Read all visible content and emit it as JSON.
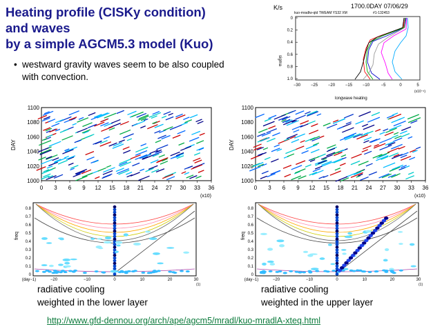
{
  "title": {
    "line1": "Heating profile (CISKy condition)",
    "line2": "and waves",
    "line3": "by a simple AGCM5.3 model (Kuo)"
  },
  "bullet": {
    "symbol": "•",
    "line1": "westward gravity waves seem to be also coupled",
    "line2": "with convection."
  },
  "inset": {
    "units": "K/s",
    "time_label": "1700.0DAY 07/06/29",
    "subtitle": "kuo-mradlw-qtd TWEAM YS32 XM",
    "run_id": "#1-132453",
    "ylabel": "sigma",
    "xlabel": "longwave heating",
    "x_exponent": "(x10⁻⁶)",
    "xticks": [
      "−30",
      "−25",
      "−20",
      "−15",
      "−10",
      "−5",
      "0",
      "5"
    ],
    "yticks": [
      "0",
      "0.2",
      "0.4",
      "0.6",
      "0.8",
      "1.0"
    ]
  },
  "left_hovmoller": {
    "ylabel": "DAY",
    "yticks": [
      "1100",
      "1080",
      "1060",
      "1040",
      "1020",
      "1000"
    ],
    "xticks": [
      "0",
      "3",
      "6",
      "9",
      "12",
      "15",
      "18",
      "21",
      "24",
      "27",
      "30",
      "33",
      "36"
    ],
    "x_exponent": "(x10)"
  },
  "right_hovmoller": {
    "ylabel": "DAY",
    "yticks": [
      "1100",
      "1080",
      "1060",
      "1040",
      "1020",
      "1000"
    ],
    "xticks": [
      "0",
      "3",
      "6",
      "9",
      "12",
      "15",
      "18",
      "21",
      "24",
      "27",
      "30",
      "33",
      "36"
    ],
    "x_exponent": "(x10)"
  },
  "left_spectrum": {
    "ylabel": "freq",
    "yticks": [
      "0.8",
      "0.7",
      "0.6",
      "0.5",
      "0.4",
      "0.3",
      "0.2",
      "0.1",
      "0"
    ],
    "xticks": [
      "(day−1)",
      "−20",
      "−10",
      "0",
      "10",
      "20",
      "30"
    ],
    "x_unit": "(1)"
  },
  "right_spectrum": {
    "ylabel": "freq",
    "yticks": [
      "0.8",
      "0.7",
      "0.6",
      "0.5",
      "0.4",
      "0.3",
      "0.2",
      "0.1",
      "0"
    ],
    "xticks": [
      "(day−1)",
      "−20",
      "−10",
      "0",
      "10",
      "20",
      "30"
    ],
    "x_unit": "(1)"
  },
  "captions": {
    "left_line1": "radiative cooling",
    "left_line2": "weighted in the lower layer",
    "right_line1": "radiative cooling",
    "right_line2": "weighted in the upper layer"
  },
  "link": {
    "text": "http://www.gfd-dennou.org/arch/ape/agcm5/mradl/kuo-mradlA-xteq.html"
  },
  "colors": {
    "title": "#1a1a8c",
    "link": "#0b7a3b",
    "profile_lines": [
      "#00aaff",
      "#0000cc",
      "#ff0000",
      "#00aa00",
      "#ff00ff",
      "#000000",
      "#999999"
    ]
  }
}
